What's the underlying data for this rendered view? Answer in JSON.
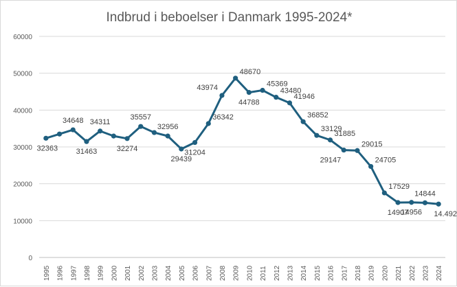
{
  "chart_data": {
    "type": "line",
    "title": "Indbrud i beboelser i Danmark 1995-2024*",
    "xlabel": "",
    "ylabel": "",
    "ylim": [
      0,
      60000
    ],
    "yticks": [
      0,
      10000,
      20000,
      30000,
      40000,
      50000,
      60000
    ],
    "grid": true,
    "legend": "none",
    "line_color": "#1f5f7f",
    "categories": [
      "1995",
      "1996",
      "1997",
      "1998",
      "1999",
      "2000",
      "2001",
      "2002",
      "2003",
      "2004",
      "2005",
      "2006",
      "2007",
      "2008",
      "2009",
      "2010",
      "2011",
      "2012",
      "2013",
      "2014",
      "2015",
      "2016",
      "2017",
      "2018",
      "2019",
      "2020",
      "2021",
      "2022",
      "2023",
      "2024"
    ],
    "values": [
      32363,
      33500,
      34648,
      31463,
      34311,
      32956,
      32274,
      35557,
      33900,
      32956,
      29439,
      31204,
      36342,
      43974,
      48670,
      44788,
      45369,
      43480,
      41946,
      36852,
      33129,
      31885,
      29147,
      29015,
      24705,
      17529,
      14907,
      14956,
      14844,
      14492
    ],
    "annotations": [
      {
        "text": "32363",
        "index": 0
      },
      {
        "text": "34648",
        "index": 2
      },
      {
        "text": "31463",
        "index": 3
      },
      {
        "text": "34311",
        "index": 4
      },
      {
        "text": "32274",
        "index": 6
      },
      {
        "text": "35557",
        "index": 7
      },
      {
        "text": "32956",
        "index": 9
      },
      {
        "text": "29439",
        "index": 10
      },
      {
        "text": "31204",
        "index": 11
      },
      {
        "text": "36342",
        "index": 12
      },
      {
        "text": "43974",
        "index": 13
      },
      {
        "text": "48670",
        "index": 14
      },
      {
        "text": "44788",
        "index": 15
      },
      {
        "text": "45369",
        "index": 16
      },
      {
        "text": "43480",
        "index": 17
      },
      {
        "text": "41946",
        "index": 18
      },
      {
        "text": "36852",
        "index": 19
      },
      {
        "text": "33129",
        "index": 20
      },
      {
        "text": "31885",
        "index": 21
      },
      {
        "text": "29147",
        "index": 22
      },
      {
        "text": "29015",
        "index": 23
      },
      {
        "text": "24705",
        "index": 24
      },
      {
        "text": "17529",
        "index": 25
      },
      {
        "text": "14907",
        "index": 26
      },
      {
        "text": "14956",
        "index": 27
      },
      {
        "text": "14844",
        "index": 28
      },
      {
        "text": "14.492",
        "index": 29
      }
    ]
  }
}
